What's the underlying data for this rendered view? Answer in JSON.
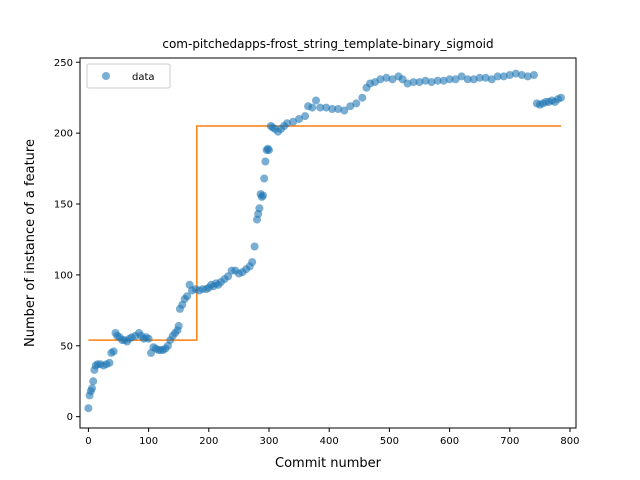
{
  "chart_data": {
    "type": "scatter",
    "title": "com-pitchedapps-frost_string_template-binary_sigmoid",
    "xlabel": "Commit number",
    "ylabel": "Number of instance of a feature",
    "xlim": [
      -14,
      810
    ],
    "ylim": [
      -8,
      253
    ],
    "xticks": [
      0,
      100,
      200,
      300,
      400,
      500,
      600,
      700,
      800
    ],
    "yticks": [
      0,
      50,
      100,
      150,
      200,
      250
    ],
    "legend": {
      "position": "upper-left",
      "entries": [
        {
          "label": "data",
          "marker": "circle"
        }
      ]
    },
    "colors": {
      "scatter": "#1f77b4",
      "fit": "#ff7f0e"
    },
    "series": [
      {
        "name": "data",
        "kind": "scatter",
        "points": [
          [
            0,
            6
          ],
          [
            2,
            15
          ],
          [
            4,
            18
          ],
          [
            6,
            20
          ],
          [
            8,
            25
          ],
          [
            10,
            33
          ],
          [
            12,
            36
          ],
          [
            15,
            37
          ],
          [
            20,
            37
          ],
          [
            25,
            36
          ],
          [
            30,
            37
          ],
          [
            35,
            38
          ],
          [
            38,
            45
          ],
          [
            42,
            46
          ],
          [
            45,
            59
          ],
          [
            48,
            57
          ],
          [
            52,
            56
          ],
          [
            56,
            54
          ],
          [
            60,
            54
          ],
          [
            64,
            53
          ],
          [
            68,
            55
          ],
          [
            72,
            56
          ],
          [
            78,
            57
          ],
          [
            84,
            59
          ],
          [
            88,
            57
          ],
          [
            92,
            55
          ],
          [
            96,
            56
          ],
          [
            100,
            55
          ],
          [
            104,
            45
          ],
          [
            108,
            49
          ],
          [
            112,
            48
          ],
          [
            116,
            47
          ],
          [
            120,
            47
          ],
          [
            124,
            47
          ],
          [
            128,
            48
          ],
          [
            132,
            50
          ],
          [
            136,
            54
          ],
          [
            140,
            57
          ],
          [
            144,
            59
          ],
          [
            148,
            61
          ],
          [
            150,
            64
          ],
          [
            152,
            76
          ],
          [
            156,
            79
          ],
          [
            160,
            83
          ],
          [
            164,
            85
          ],
          [
            168,
            93
          ],
          [
            172,
            89
          ],
          [
            178,
            90
          ],
          [
            184,
            89
          ],
          [
            190,
            90
          ],
          [
            196,
            90
          ],
          [
            200,
            91
          ],
          [
            204,
            93
          ],
          [
            208,
            92
          ],
          [
            212,
            94
          ],
          [
            216,
            93
          ],
          [
            220,
            95
          ],
          [
            226,
            97
          ],
          [
            232,
            99
          ],
          [
            238,
            103
          ],
          [
            244,
            103
          ],
          [
            250,
            101
          ],
          [
            256,
            102
          ],
          [
            262,
            104
          ],
          [
            268,
            106
          ],
          [
            272,
            109
          ],
          [
            276,
            120
          ],
          [
            280,
            139
          ],
          [
            282,
            143
          ],
          [
            284,
            147
          ],
          [
            286,
            157
          ],
          [
            288,
            155
          ],
          [
            290,
            156
          ],
          [
            292,
            168
          ],
          [
            294,
            180
          ],
          [
            296,
            188
          ],
          [
            298,
            189
          ],
          [
            300,
            188
          ],
          [
            303,
            205
          ],
          [
            306,
            204
          ],
          [
            310,
            203
          ],
          [
            315,
            201
          ],
          [
            320,
            203
          ],
          [
            325,
            205
          ],
          [
            330,
            207
          ],
          [
            340,
            208
          ],
          [
            350,
            210
          ],
          [
            360,
            212
          ],
          [
            365,
            219
          ],
          [
            372,
            218
          ],
          [
            378,
            223
          ],
          [
            385,
            218
          ],
          [
            395,
            218
          ],
          [
            405,
            217
          ],
          [
            415,
            217
          ],
          [
            425,
            216
          ],
          [
            435,
            219
          ],
          [
            445,
            221
          ],
          [
            455,
            225
          ],
          [
            462,
            232
          ],
          [
            468,
            235
          ],
          [
            476,
            236
          ],
          [
            485,
            238
          ],
          [
            495,
            239
          ],
          [
            505,
            238
          ],
          [
            515,
            240
          ],
          [
            522,
            238
          ],
          [
            530,
            235
          ],
          [
            540,
            236
          ],
          [
            550,
            236
          ],
          [
            560,
            237
          ],
          [
            570,
            236
          ],
          [
            580,
            237
          ],
          [
            590,
            237
          ],
          [
            600,
            238
          ],
          [
            610,
            238
          ],
          [
            620,
            240
          ],
          [
            630,
            238
          ],
          [
            640,
            238
          ],
          [
            650,
            239
          ],
          [
            660,
            239
          ],
          [
            670,
            238
          ],
          [
            680,
            240
          ],
          [
            690,
            240
          ],
          [
            700,
            241
          ],
          [
            710,
            242
          ],
          [
            720,
            241
          ],
          [
            730,
            240
          ],
          [
            740,
            241
          ],
          [
            745,
            221
          ],
          [
            750,
            220
          ],
          [
            755,
            221
          ],
          [
            760,
            222
          ],
          [
            765,
            222
          ],
          [
            770,
            223
          ],
          [
            775,
            222
          ],
          [
            780,
            224
          ],
          [
            785,
            225
          ]
        ]
      },
      {
        "name": "",
        "kind": "step",
        "points": [
          [
            0,
            54
          ],
          [
            180,
            54
          ],
          [
            180,
            205
          ],
          [
            785,
            205
          ]
        ]
      }
    ]
  }
}
